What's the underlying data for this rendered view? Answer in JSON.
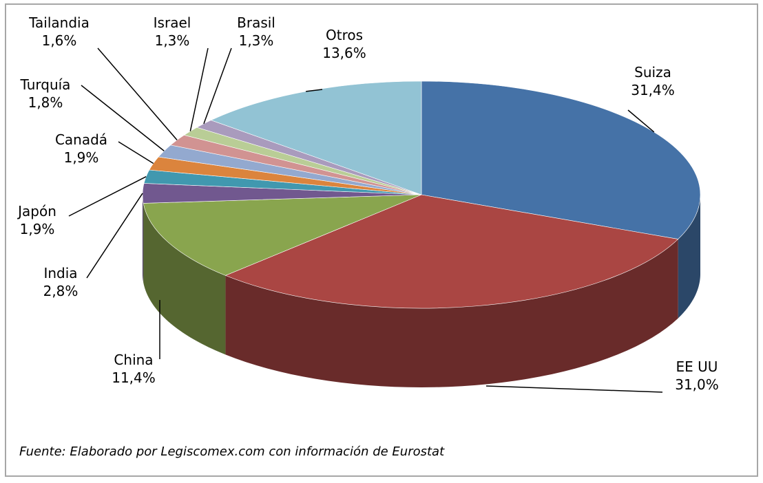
{
  "chart_data": {
    "type": "pie",
    "categories": [
      "Suiza",
      "EE UU",
      "China",
      "India",
      "Japón",
      "Canadá",
      "Turquía",
      "Tailandia",
      "Israel",
      "Brasil",
      "Otros"
    ],
    "values": [
      31.4,
      31.0,
      11.4,
      2.8,
      1.9,
      1.9,
      1.8,
      1.6,
      1.3,
      1.3,
      13.6
    ],
    "value_labels": [
      "31,4%",
      "31,0%",
      "11,4%",
      "2,8%",
      "1,9%",
      "1,9%",
      "1,8%",
      "1,6%",
      "1,3%",
      "1,3%",
      "13,6%"
    ],
    "colors": [
      "#4572a7",
      "#aa4643",
      "#89a54e",
      "#71588f",
      "#4198af",
      "#db843d",
      "#93a9cf",
      "#d19392",
      "#b9cd96",
      "#a99bbd",
      "#92c3d4"
    ],
    "footnote": "Fuente: Elaborado por Legiscomex.com con información de Eurostat"
  }
}
